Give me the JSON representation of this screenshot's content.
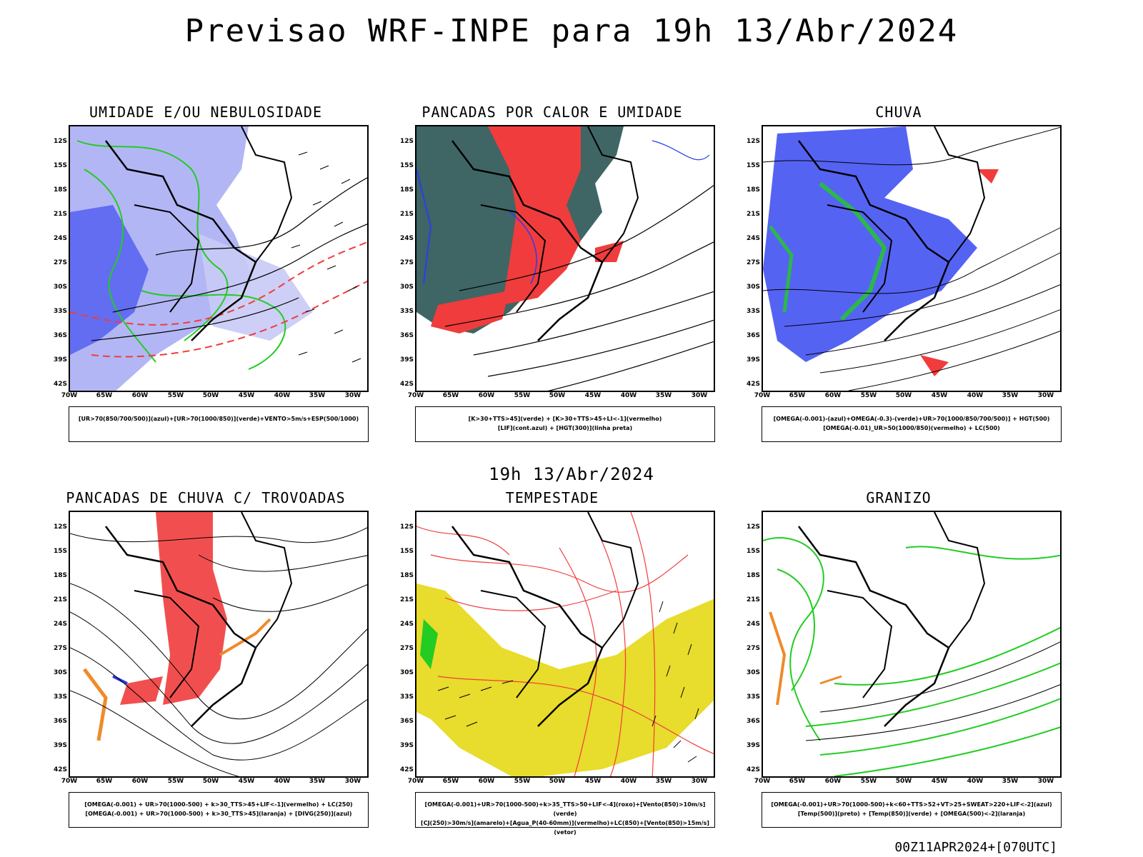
{
  "title": "Previsao WRF-INPE  para 19h 13/Abr/2024",
  "middle_time": "19h 13/Abr/2024",
  "footer": "00Z11APR2024+[070UTC]",
  "axis": {
    "lat": [
      "12S",
      "15S",
      "18S",
      "21S",
      "24S",
      "27S",
      "30S",
      "33S",
      "36S",
      "39S",
      "42S"
    ],
    "lon": [
      "70W",
      "65W",
      "60W",
      "55W",
      "50W",
      "45W",
      "40W",
      "35W",
      "30W"
    ]
  },
  "panels": [
    {
      "title": "UMIDADE E/OU NEBULOSIDADE",
      "legend": [
        "[UR>70(850/700/500)](azul)+[UR>70(1000/850)](verde)+VENTO>5m/s+ESP(500/1000)"
      ]
    },
    {
      "title": "PANCADAS POR CALOR E UMIDADE",
      "legend": [
        "[K>30+TTS>45](verde) + [K>30+TTS>45+LI<-1](vermelho)",
        "[LIF](cont.azul) + [HGT(300)](linha preta)"
      ]
    },
    {
      "title": "CHUVA",
      "legend": [
        "[OMEGA(-0.001)-(azul)+OMEGA(-0.3)-(verde)+UR>70(1000/850/700/500)] + HGT(500)",
        "[OMEGA(-0.01)_UR>50(1000/850)(vermelho) + LC(500)"
      ]
    },
    {
      "title": "PANCADAS DE CHUVA C/ TROVOADAS",
      "legend": [
        "[OMEGA(-0.001) + UR>70(1000-500) + k>30_TTS>45+LIF<-1](vermelho) + LC(250)",
        "[OMEGA(-0.001) + UR>70(1000-500) + k>30_TTS>45](laranja) + [DIVG(250)](azul)"
      ]
    },
    {
      "title": "TEMPESTADE",
      "legend": [
        "[OMEGA(-0.001)+UR>70(1000-500)+k>35_TTS>50+LIF<-4](roxo)+[Vento(850)>10m/s](verde)",
        "[CJ(250)>30m/s](amarelo)+[Agua_P(40-60mm)](vermelho)+LC(850)+[Vento(850)>15m/s](vetor)"
      ]
    },
    {
      "title": "GRANIZO",
      "legend": [
        "[OMEGA(-0.001)+UR>70(1000-500)+k<60+TTS>52+VT>25+SWEAT>220+LIF<-2](azul)",
        "[Temp(500)](preto) + [Temp(850)](verde) + [OMEGA(500)<-2](laranja)"
      ]
    }
  ],
  "colors": {
    "blue_fill": "#9a9ef0",
    "deep_blue": "#2b3cf0",
    "green": "#22cc22",
    "red": "#f03c3c",
    "dark_teal": "#1f4a4a",
    "orange": "#f08a2a",
    "yellow": "#e8dc2c"
  }
}
